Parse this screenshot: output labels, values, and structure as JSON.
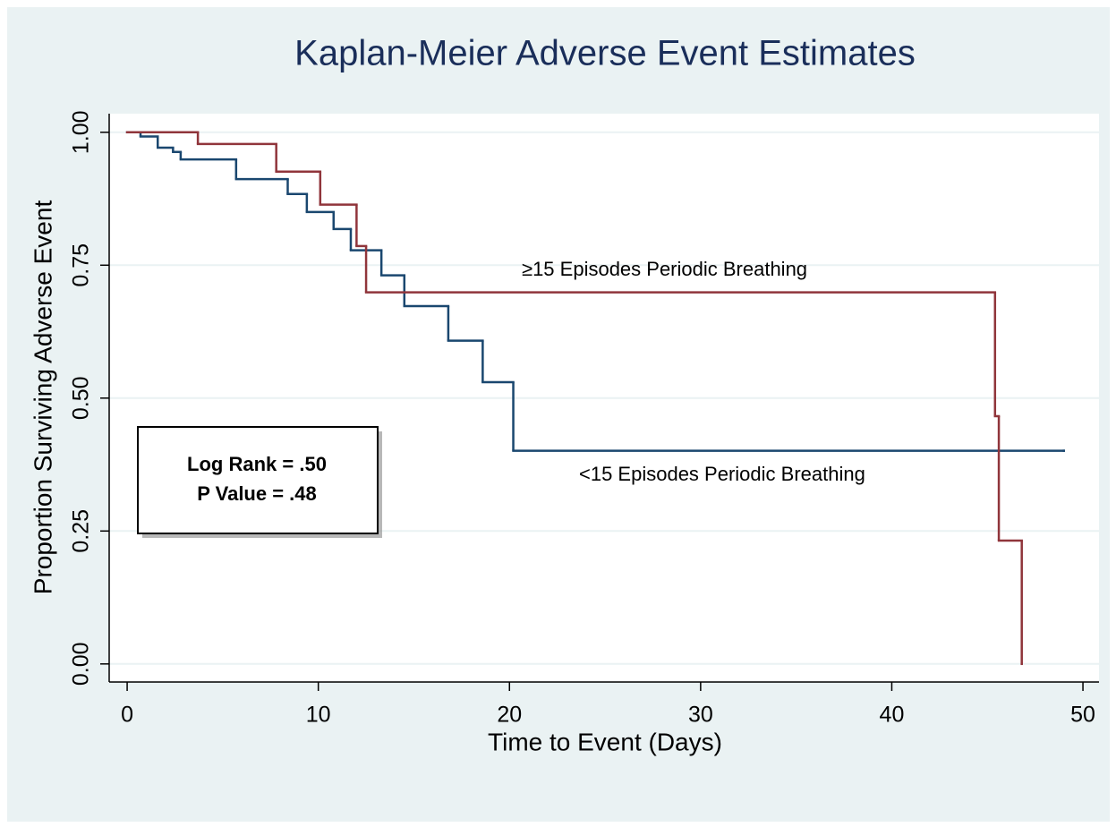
{
  "chart_data": {
    "type": "line",
    "step": true,
    "title": "Kaplan-Meier Adverse Event Estimates",
    "xlabel": "Time to Event (Days)",
    "ylabel": "Proportion Surviving Adverse Event",
    "xlim": [
      -0.94,
      50.84
    ],
    "ylim": [
      -0.034,
      1.035
    ],
    "xticks": [
      0,
      10,
      20,
      30,
      40,
      50
    ],
    "yticks": [
      {
        "value": 0,
        "label": "0.00"
      },
      {
        "value": 0.25,
        "label": "0.25"
      },
      {
        "value": 0.5,
        "label": "0.50"
      },
      {
        "value": 0.75,
        "label": "0.75"
      },
      {
        "value": 1,
        "label": "1.00"
      }
    ],
    "grid": true,
    "series": [
      {
        "name": "<15 Episodes Periodic Breathing",
        "color": "#1a476f",
        "x": [
          0,
          0.7,
          1.6,
          2.4,
          2.8,
          5.7,
          8.4,
          9.4,
          10.8,
          11.7,
          13.3,
          14.5,
          16.8,
          18.6,
          20.2,
          49
        ],
        "values": [
          1.0,
          0.992,
          0.971,
          0.963,
          0.949,
          0.912,
          0.884,
          0.85,
          0.818,
          0.778,
          0.731,
          0.673,
          0.608,
          0.53,
          0.401,
          0.401
        ]
      },
      {
        "name": "≥15 Episodes Periodic Breathing",
        "color": "#90353b",
        "x": [
          0,
          3.7,
          7.8,
          10.1,
          12.0,
          12.5,
          45.4,
          45.6,
          46.8
        ],
        "values": [
          1.0,
          0.978,
          0.926,
          0.864,
          0.786,
          0.699,
          0.466,
          0.232,
          0
        ]
      }
    ],
    "annotations": [
      "Log Rank = .50",
      "P Value = .48"
    ]
  }
}
